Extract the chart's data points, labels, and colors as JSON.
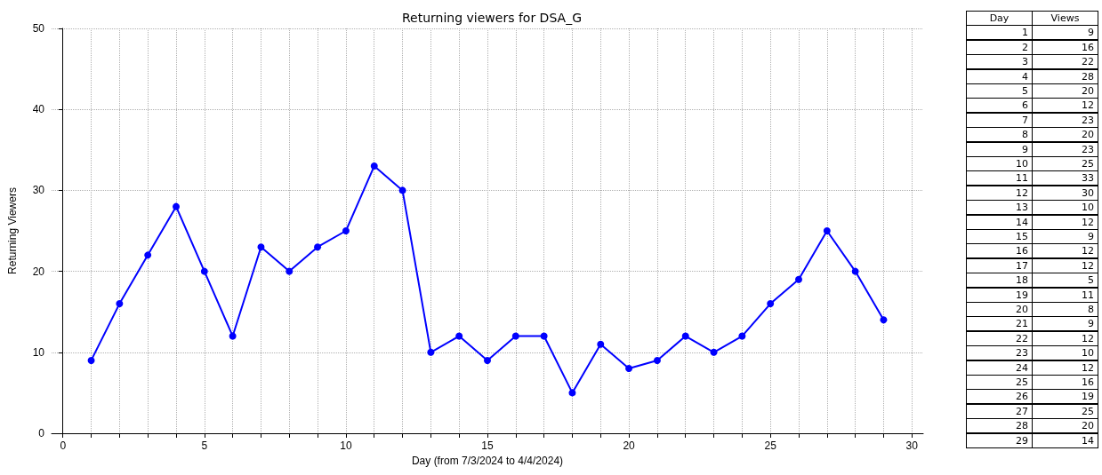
{
  "chart_data": [
    {
      "type": "line",
      "title": "Returning viewers for DSA_G",
      "xlabel": "Day (from 7/3/2024 to 4/4/2024)",
      "ylabel": "Returning Viewers",
      "x": [
        1,
        2,
        3,
        4,
        5,
        6,
        7,
        8,
        9,
        10,
        11,
        12,
        13,
        14,
        15,
        16,
        17,
        18,
        19,
        20,
        21,
        22,
        23,
        24,
        25,
        26,
        27,
        28,
        29
      ],
      "series": [
        {
          "color": "#0000ff",
          "values": [
            9,
            16,
            22,
            28,
            20,
            12,
            23,
            20,
            23,
            25,
            33,
            30,
            10,
            12,
            9,
            12,
            12,
            5,
            11,
            8,
            9,
            12,
            10,
            12,
            16,
            19,
            25,
            20,
            14
          ]
        }
      ],
      "xlim": [
        -0.4,
        30.4
      ],
      "xticks": [
        0,
        {
          "value": 1,
          "label": null
        },
        {
          "value": 2,
          "label": null
        },
        {
          "value": 3,
          "label": null
        },
        {
          "value": 4,
          "label": null
        },
        5,
        {
          "value": 6,
          "label": null
        },
        {
          "value": 7,
          "label": null
        },
        {
          "value": 8,
          "label": null
        },
        {
          "value": 9,
          "label": null
        },
        10,
        {
          "value": 11,
          "label": null
        },
        {
          "value": 12,
          "label": null
        },
        {
          "value": 13,
          "label": null
        },
        {
          "value": 14,
          "label": null
        },
        15,
        {
          "value": 16,
          "label": null
        },
        {
          "value": 17,
          "label": null
        },
        {
          "value": 18,
          "label": null
        },
        {
          "value": 19,
          "label": null
        },
        20,
        {
          "value": 21,
          "label": null
        },
        {
          "value": 22,
          "label": null
        },
        {
          "value": 23,
          "label": null
        },
        {
          "value": 24,
          "label": null
        },
        25,
        {
          "value": 26,
          "label": null
        },
        {
          "value": 27,
          "label": null
        },
        {
          "value": 28,
          "label": null
        },
        {
          "value": 29,
          "label": null
        },
        30
      ],
      "ylim": [
        0,
        50
      ],
      "yticks": [
        0,
        10,
        20,
        30,
        40,
        50
      ],
      "grid": true,
      "marker": "circle",
      "line_style": "solid"
    },
    {
      "type": "heatmap",
      "ylabel": "Day",
      "categories": [
        "Views"
      ],
      "data_labels": true,
      "y_categories": [
        "1",
        "2",
        "3",
        "4",
        "5",
        "6",
        "7",
        "8",
        "9",
        "10",
        "11",
        "12",
        "13",
        "14",
        "15",
        "16",
        "17",
        "18",
        "19",
        "20",
        "21",
        "22",
        "23",
        "24",
        "25",
        "26",
        "27",
        "28",
        "29"
      ],
      "cells": [
        [
          9
        ],
        [
          16
        ],
        [
          22
        ],
        [
          28
        ],
        [
          20
        ],
        [
          12
        ],
        [
          23
        ],
        [
          20
        ],
        [
          23
        ],
        [
          25
        ],
        [
          33
        ],
        [
          30
        ],
        [
          10
        ],
        [
          12
        ],
        [
          9
        ],
        [
          12
        ],
        [
          12
        ],
        [
          5
        ],
        [
          11
        ],
        [
          8
        ],
        [
          9
        ],
        [
          12
        ],
        [
          10
        ],
        [
          12
        ],
        [
          16
        ],
        [
          19
        ],
        [
          25
        ],
        [
          20
        ],
        [
          14
        ]
      ]
    }
  ]
}
